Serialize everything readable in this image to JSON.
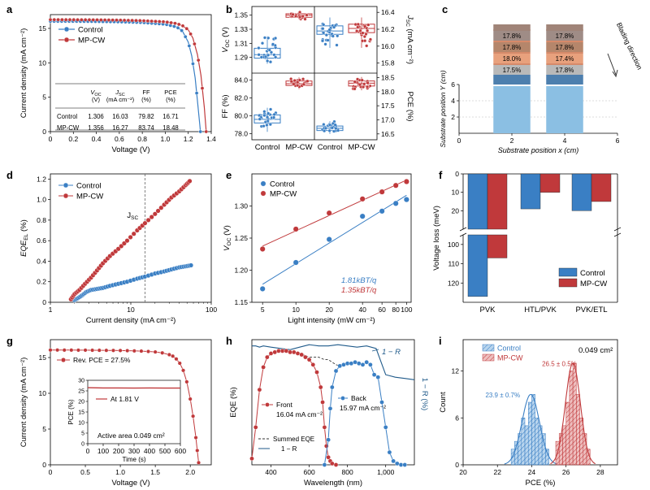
{
  "colors": {
    "control": "#3a7fc4",
    "mpcw": "#c0393b",
    "control_light": "#7fb2e0",
    "mpcw_light": "#e08a8a",
    "thin": "#1f5a8a"
  },
  "panel_labels": [
    "a",
    "b",
    "c",
    "d",
    "e",
    "f",
    "g",
    "h",
    "i"
  ],
  "legend": {
    "control": "Control",
    "mpcw": "MP-CW"
  },
  "chart_data": [
    {
      "id": "a",
      "type": "line",
      "title": "",
      "xlabel": "Voltage (V)",
      "ylabel": "Current density (mA cm⁻²)",
      "xlim": [
        0,
        1.4
      ],
      "ylim": [
        0,
        17
      ],
      "xticks": [
        "0",
        "0.2",
        "0.4",
        "0.6",
        "0.8",
        "1.0",
        "1.2",
        "1.4"
      ],
      "yticks": [
        "0",
        "5",
        "10",
        "15"
      ],
      "series": [
        {
          "name": "Control",
          "voc": 1.306,
          "jsc": 16.03,
          "x": [
            0,
            0.2,
            0.4,
            0.6,
            0.8,
            1.0,
            1.1,
            1.15,
            1.2,
            1.23,
            1.26,
            1.28,
            1.3,
            1.306
          ],
          "y": [
            16.03,
            16.02,
            16.0,
            15.95,
            15.85,
            15.6,
            15.2,
            14.6,
            13.0,
            11.0,
            7.8,
            4.5,
            1.0,
            0
          ]
        },
        {
          "name": "MP-CW",
          "voc": 1.356,
          "jsc": 16.27,
          "x": [
            0,
            0.2,
            0.4,
            0.6,
            0.8,
            1.0,
            1.1,
            1.15,
            1.2,
            1.24,
            1.28,
            1.31,
            1.34,
            1.356
          ],
          "y": [
            16.27,
            16.26,
            16.24,
            16.2,
            16.12,
            15.95,
            15.7,
            15.4,
            14.8,
            13.6,
            11.2,
            8.2,
            3.5,
            0
          ]
        }
      ],
      "table": {
        "headers": [
          [
            "",
            ""
          ],
          [
            "V",
            "(V)"
          ],
          [
            "J",
            "(mA cm⁻²)"
          ],
          [
            "FF",
            "(%)"
          ],
          [
            "PCE",
            "(%)"
          ]
        ],
        "header_subs": [
          "",
          "OC",
          "SC",
          "",
          ""
        ],
        "rows": [
          [
            "Control",
            "1.306",
            "16.03",
            "79.82",
            "16.71"
          ],
          [
            "MP-CW",
            "1.356",
            "16.27",
            "83.74",
            "18.48"
          ]
        ]
      }
    },
    {
      "id": "b",
      "type": "box",
      "categories": [
        "Control",
        "MP-CW",
        "Control",
        "MP-CW"
      ],
      "subplots": [
        {
          "metric": "V_OC (V)",
          "side": "left",
          "ylim": [
            1.27,
            1.36
          ],
          "yticks": [
            "1.29",
            "1.31",
            "1.33",
            "1.35"
          ],
          "boxes": [
            {
              "name": "Control",
              "q1": 1.289,
              "median": 1.294,
              "q3": 1.303,
              "lo": 1.281,
              "hi": 1.32
            },
            {
              "name": "MP-CW",
              "q1": 1.347,
              "median": 1.35,
              "q3": 1.352,
              "lo": 1.344,
              "hi": 1.355
            }
          ]
        },
        {
          "metric": "J_SC (mA cm⁻²)",
          "side": "right",
          "ylim": [
            15.7,
            16.45
          ],
          "yticks": [
            "15.8",
            "16.0",
            "16.2",
            "16.4"
          ],
          "boxes": [
            {
              "name": "Control",
              "q1": 16.14,
              "median": 16.18,
              "q3": 16.24,
              "lo": 15.98,
              "hi": 16.34
            },
            {
              "name": "MP-CW",
              "q1": 16.16,
              "median": 16.21,
              "q3": 16.26,
              "lo": 15.98,
              "hi": 16.34
            }
          ]
        },
        {
          "metric": "FF (%)",
          "side": "left",
          "ylim": [
            77.5,
            84.6
          ],
          "yticks": [
            "78.0",
            "80.0",
            "82.0",
            "84.0"
          ],
          "boxes": [
            {
              "name": "Control",
              "q1": 79.2,
              "median": 79.6,
              "q3": 80.1,
              "lo": 78.2,
              "hi": 80.9
            },
            {
              "name": "MP-CW",
              "q1": 83.4,
              "median": 83.6,
              "q3": 83.9,
              "lo": 83.0,
              "hi": 84.3
            }
          ]
        },
        {
          "metric": "PCE (%)",
          "side": "right",
          "ylim": [
            16.35,
            18.6
          ],
          "yticks": [
            "16.5",
            "17.0",
            "17.5",
            "18.0",
            "18.5"
          ],
          "boxes": [
            {
              "name": "Control",
              "q1": 16.62,
              "median": 16.7,
              "q3": 16.78,
              "lo": 16.5,
              "hi": 16.95
            },
            {
              "name": "MP-CW",
              "q1": 18.2,
              "median": 18.3,
              "q3": 18.38,
              "lo": 18.05,
              "hi": 18.52
            }
          ]
        }
      ]
    },
    {
      "id": "c",
      "type": "bar",
      "xlabel": "Substrate position x (cm)",
      "ylabel": "Substrate position Y (cm)",
      "xlim": [
        0,
        6
      ],
      "ylim": [
        0,
        6
      ],
      "xticks": [
        "0",
        "2",
        "4",
        "6"
      ],
      "yticks": [
        "0",
        "2",
        "4",
        "6"
      ],
      "annotation": "Blading direction",
      "columns": [
        {
          "name": "left",
          "labels": [
            "17.5%",
            "18.0%",
            "17.8%",
            "17.8%"
          ]
        },
        {
          "name": "right",
          "labels": [
            "17.8%",
            "17.4%",
            "17.8%",
            "17.8%"
          ]
        }
      ]
    },
    {
      "id": "d",
      "type": "scatter",
      "xlabel": "Current density (mA cm⁻²)",
      "ylabel": "EQE_EL (%)",
      "xscale": "log",
      "xlim": [
        1,
        100
      ],
      "ylim": [
        0,
        1.25
      ],
      "xticks": [
        "1",
        "10",
        "100"
      ],
      "yticks": [
        "0",
        "0.2",
        "0.4",
        "0.6",
        "0.8",
        "1.0",
        "1.2"
      ],
      "vline_x": 15,
      "vline_label": "J_SC",
      "series": [
        {
          "name": "Control",
          "x": [
            2.0,
            2.2,
            2.5,
            2.8,
            3.2,
            3.8,
            4.5,
            5.5,
            7,
            9,
            12,
            15,
            20,
            26,
            32,
            40,
            48,
            56
          ],
          "y": [
            0.02,
            0.04,
            0.07,
            0.1,
            0.12,
            0.13,
            0.14,
            0.16,
            0.18,
            0.2,
            0.23,
            0.25,
            0.28,
            0.3,
            0.32,
            0.34,
            0.35,
            0.36
          ]
        },
        {
          "name": "MP-CW",
          "x": [
            1.8,
            2.0,
            2.3,
            2.7,
            3.2,
            3.8,
            4.5,
            5.5,
            7,
            9,
            12,
            15,
            20,
            26,
            32,
            40,
            48,
            54
          ],
          "y": [
            0.03,
            0.08,
            0.12,
            0.18,
            0.24,
            0.31,
            0.38,
            0.45,
            0.52,
            0.6,
            0.7,
            0.77,
            0.86,
            0.95,
            1.02,
            1.08,
            1.14,
            1.18
          ]
        }
      ]
    },
    {
      "id": "e",
      "type": "scatter",
      "xlabel": "Light intensity (mW cm⁻²)",
      "ylabel": "V_OC (V)",
      "xscale": "log",
      "xlim": [
        4,
        110
      ],
      "ylim": [
        1.15,
        1.35
      ],
      "xticks": [
        "5",
        "10",
        "20",
        "40",
        "60",
        "80",
        "100"
      ],
      "yticks": [
        "1.15",
        "1.20",
        "1.25",
        "1.30"
      ],
      "fits": [
        "1.81kBT/q",
        "1.35kBT/q"
      ],
      "series": [
        {
          "name": "Control",
          "x": [
            5,
            10,
            20,
            40,
            60,
            80,
            100
          ],
          "y": [
            1.171,
            1.212,
            1.248,
            1.284,
            1.292,
            1.304,
            1.31
          ]
        },
        {
          "name": "MP-CW",
          "x": [
            5,
            10,
            20,
            40,
            60,
            80,
            100
          ],
          "y": [
            1.233,
            1.264,
            1.289,
            1.311,
            1.322,
            1.332,
            1.338
          ]
        }
      ]
    },
    {
      "id": "f",
      "type": "bar",
      "ylabel": "Voltage loss (meV)",
      "inverted": true,
      "broken_axis": [
        30,
        95
      ],
      "categories": [
        "PVK",
        "HTL/PVK",
        "PVK/ETL"
      ],
      "yticks_top": [
        "0",
        "10",
        "20"
      ],
      "yticks_bottom": [
        "100",
        "110",
        "120"
      ],
      "series": [
        {
          "name": "Control",
          "values": [
            127,
            19,
            20
          ]
        },
        {
          "name": "MP-CW",
          "values": [
            107,
            10,
            15
          ]
        }
      ]
    },
    {
      "id": "g",
      "type": "line",
      "xlabel": "Voltage (V)",
      "ylabel": "Current density (mA cm⁻²)",
      "xlim": [
        0,
        2.3
      ],
      "ylim": [
        0,
        17.5
      ],
      "xticks": [
        "0",
        "0.5",
        "1.0",
        "1.5",
        "2.0"
      ],
      "yticks": [
        "0",
        "5",
        "10",
        "15"
      ],
      "legend": "Rev. PCE = 27.5%",
      "series": [
        {
          "name": "Rev.",
          "x": [
            0,
            0.1,
            0.2,
            0.3,
            0.4,
            0.5,
            0.6,
            0.7,
            0.8,
            0.9,
            1.0,
            1.1,
            1.2,
            1.3,
            1.4,
            1.5,
            1.6,
            1.7,
            1.75,
            1.8,
            1.85,
            1.9,
            1.95,
            2.0,
            2.04,
            2.08,
            2.1,
            2.12
          ],
          "y": [
            16.05,
            16.05,
            16.04,
            16.04,
            16.03,
            16.03,
            16.02,
            16.01,
            16.0,
            15.99,
            15.98,
            15.96,
            15.93,
            15.9,
            15.85,
            15.78,
            15.65,
            15.4,
            15.2,
            14.8,
            14.2,
            13.2,
            11.6,
            9.2,
            6.8,
            3.8,
            2.0,
            0.3
          ]
        }
      ],
      "inset": {
        "xlabel": "Time (s)",
        "ylabel": "PCE (%)",
        "legend": "At 1.81 V",
        "note": "Active area 0.049 cm²",
        "xlim": [
          0,
          600
        ],
        "ylim": [
          0,
          30
        ],
        "xticks": [
          "0",
          "100",
          "200",
          "300",
          "400",
          "500",
          "600"
        ],
        "yticks": [
          "0",
          "5",
          "10",
          "15",
          "20",
          "25",
          "30"
        ],
        "series": [
          {
            "name": "At 1.81 V",
            "x": [
              0,
              100,
              200,
              300,
              400,
              500,
              600
            ],
            "y": [
              26.5,
              26.4,
              26.4,
              26.3,
              26.4,
              26.3,
              26.3
            ]
          }
        ]
      }
    },
    {
      "id": "h",
      "type": "line",
      "xlabel": "Wavelength (nm)",
      "ylabel": "EQE (%)",
      "ylabel_right": "1 − R (%)",
      "xlim": [
        300,
        1150
      ],
      "ylim": [
        0,
        100
      ],
      "xticks": [
        "400",
        "600",
        "800",
        "1,000"
      ],
      "annotation": "1 − R",
      "legend": [
        "Summed EQE",
        "1 − R"
      ],
      "labels": {
        "front": "Front",
        "front_jsc": "16.04 mA cm⁻²",
        "back": "Back",
        "back_jsc": "15.97 mA cm⁻²"
      },
      "series": [
        {
          "name": "Front",
          "x": [
            300,
            320,
            340,
            360,
            380,
            400,
            420,
            440,
            460,
            480,
            500,
            520,
            540,
            560,
            580,
            600,
            620,
            640,
            660,
            670,
            680,
            690,
            700,
            710,
            720,
            740
          ],
          "y": [
            5,
            30,
            60,
            78,
            86,
            89,
            90,
            91,
            91,
            91,
            90,
            90,
            89,
            88,
            86,
            84,
            80,
            74,
            62,
            50,
            30,
            15,
            6,
            3,
            1,
            0
          ]
        },
        {
          "name": "Back",
          "x": [
            680,
            700,
            710,
            720,
            740,
            760,
            780,
            800,
            820,
            840,
            860,
            880,
            900,
            920,
            940,
            960,
            980,
            1000,
            1020,
            1040,
            1060,
            1080,
            1100
          ],
          "y": [
            0,
            20,
            45,
            62,
            75,
            79,
            80,
            81,
            81,
            82,
            81,
            80,
            82,
            80,
            72,
            70,
            50,
            30,
            10,
            3,
            1,
            0,
            0
          ]
        },
        {
          "name": "1 − R",
          "x": [
            300,
            320,
            340,
            360,
            400,
            450,
            500,
            550,
            600,
            650,
            700,
            750,
            800,
            850,
            900,
            950,
            1000,
            1050,
            1100,
            1150
          ],
          "y": [
            95,
            95,
            94,
            95,
            94,
            93,
            92,
            94,
            96,
            95,
            95,
            96,
            95,
            94,
            95,
            93,
            72,
            70,
            69,
            68
          ]
        },
        {
          "name": "Summed EQE",
          "x": [
            500,
            550,
            600,
            650,
            680,
            700,
            720,
            740,
            760
          ],
          "y": [
            90,
            89,
            86,
            86,
            84,
            84,
            82,
            80,
            79
          ]
        }
      ]
    },
    {
      "id": "i",
      "type": "histogram",
      "xlabel": "PCE (%)",
      "ylabel": "Count",
      "xlim": [
        20,
        29
      ],
      "ylim": [
        0,
        16
      ],
      "xticks": [
        "20",
        "22",
        "24",
        "26",
        "28"
      ],
      "yticks": [
        "0",
        "6",
        "12"
      ],
      "note": "0.049 cm²",
      "series": [
        {
          "name": "Control",
          "annotation": "23.9 ± 0.7%",
          "bin_edges": [
            22.8,
            23.0,
            23.2,
            23.4,
            23.6,
            23.8,
            24.0,
            24.2,
            24.4,
            24.6,
            24.8,
            25.0
          ],
          "counts": [
            2,
            3,
            4,
            6,
            5,
            8,
            9,
            6,
            5,
            4,
            2
          ]
        },
        {
          "name": "MP-CW",
          "annotation": "26.5 ± 0.5%",
          "bin_edges": [
            25.4,
            25.6,
            25.8,
            26.0,
            26.2,
            26.4,
            26.6,
            26.8,
            27.0,
            27.2,
            27.4
          ],
          "counts": [
            3,
            4,
            5,
            8,
            12,
            13,
            9,
            6,
            4,
            2
          ]
        }
      ]
    }
  ]
}
